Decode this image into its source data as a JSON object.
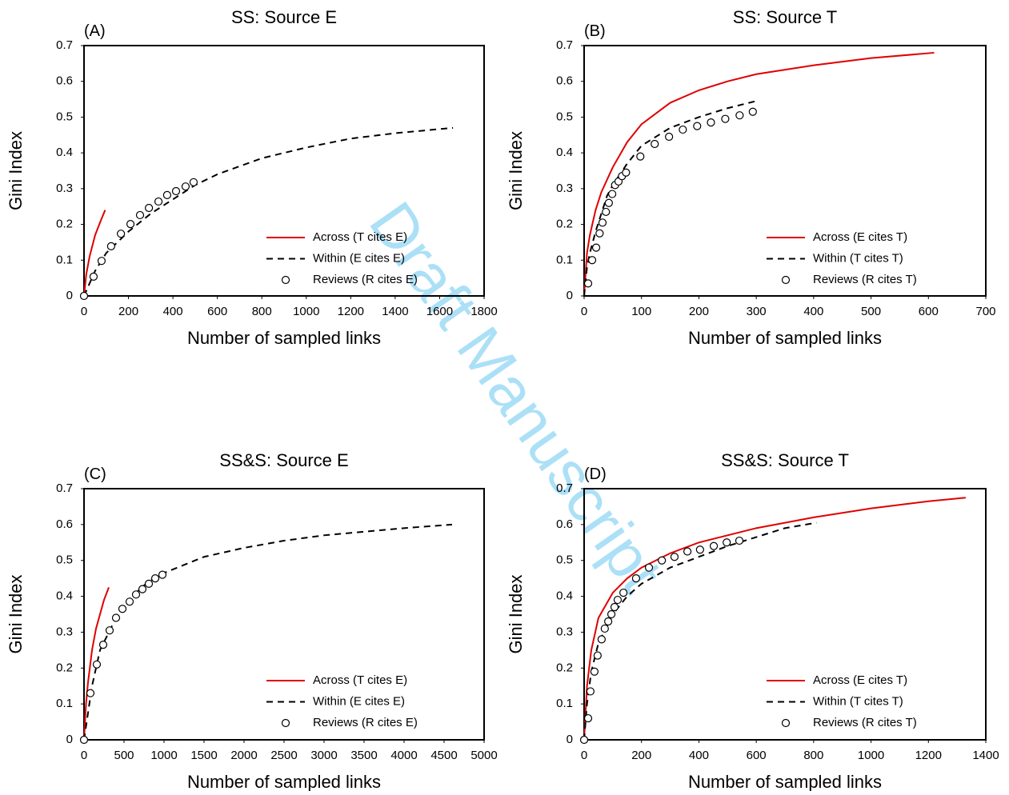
{
  "watermark": "Draft Manuscript",
  "chart_data": [
    {
      "type": "line",
      "panel": "(A)",
      "title": "SS: Source E",
      "xlabel": "Number of sampled links",
      "ylabel": "Gini Index",
      "xlim": [
        0,
        1800
      ],
      "xticks": [
        0,
        200,
        400,
        600,
        800,
        1000,
        1200,
        1400,
        1600,
        1800
      ],
      "ylim": [
        0,
        0.7
      ],
      "yticks": [
        0,
        0.1,
        0.2,
        0.3,
        0.4,
        0.5,
        0.6,
        0.7
      ],
      "series": [
        {
          "name": "Across (T cites E)",
          "color": "#e00000",
          "style": "solid",
          "x": [
            0,
            10,
            25,
            50,
            75,
            95
          ],
          "values": [
            0,
            0.06,
            0.11,
            0.17,
            0.21,
            0.24
          ]
        },
        {
          "name": "Within (E cites E)",
          "color": "#000000",
          "style": "dashed",
          "x": [
            0,
            50,
            100,
            200,
            300,
            400,
            500,
            600,
            800,
            1000,
            1200,
            1400,
            1660
          ],
          "values": [
            0,
            0.07,
            0.12,
            0.18,
            0.23,
            0.27,
            0.31,
            0.34,
            0.385,
            0.415,
            0.44,
            0.455,
            0.47
          ]
        },
        {
          "name": "Reviews (R cites E)",
          "color": "#000000",
          "style": "markers",
          "x": [
            0,
            43,
            79,
            122,
            166,
            209,
            252,
            292,
            335,
            374,
            414,
            457,
            493
          ],
          "values": [
            0,
            0.054,
            0.098,
            0.139,
            0.174,
            0.201,
            0.226,
            0.246,
            0.264,
            0.282,
            0.293,
            0.306,
            0.318
          ]
        }
      ]
    },
    {
      "type": "line",
      "panel": "(B)",
      "title": "SS: Source T",
      "xlabel": "Number of sampled links",
      "ylabel": "Gini Index",
      "xlim": [
        0,
        700
      ],
      "xticks": [
        0,
        100,
        200,
        300,
        400,
        500,
        600,
        700
      ],
      "ylim": [
        0,
        0.7
      ],
      "yticks": [
        0,
        0.1,
        0.2,
        0.3,
        0.4,
        0.5,
        0.6,
        0.7
      ],
      "series": [
        {
          "name": "Across (E cites T)",
          "color": "#e00000",
          "style": "solid",
          "x": [
            0,
            5,
            10,
            20,
            30,
            50,
            75,
            100,
            150,
            200,
            250,
            300,
            400,
            500,
            610
          ],
          "values": [
            0,
            0.12,
            0.17,
            0.24,
            0.29,
            0.36,
            0.43,
            0.48,
            0.54,
            0.575,
            0.6,
            0.62,
            0.645,
            0.665,
            0.68
          ]
        },
        {
          "name": "Within (T cites T)",
          "color": "#000000",
          "style": "dashed",
          "x": [
            0,
            5,
            10,
            20,
            30,
            40,
            50,
            75,
            100,
            150,
            200,
            250,
            300
          ],
          "values": [
            0,
            0.08,
            0.12,
            0.18,
            0.23,
            0.28,
            0.31,
            0.37,
            0.42,
            0.47,
            0.5,
            0.525,
            0.545
          ]
        },
        {
          "name": "Reviews (R cites T)",
          "color": "#000000",
          "style": "markers",
          "x": [
            7,
            14,
            21,
            27,
            32,
            38,
            43,
            49,
            54,
            60,
            66,
            73,
            98,
            123,
            148,
            172,
            197,
            221,
            246,
            271,
            294
          ],
          "values": [
            0.035,
            0.1,
            0.135,
            0.175,
            0.205,
            0.235,
            0.26,
            0.285,
            0.31,
            0.32,
            0.335,
            0.345,
            0.39,
            0.425,
            0.445,
            0.465,
            0.475,
            0.485,
            0.495,
            0.505,
            0.515
          ]
        }
      ]
    },
    {
      "type": "line",
      "panel": "(C)",
      "title": "SS&S: Source E",
      "xlabel": "Number of sampled links",
      "ylabel": "Gini Index",
      "xlim": [
        0,
        5000
      ],
      "xticks": [
        0,
        500,
        1000,
        1500,
        2000,
        2500,
        3000,
        3500,
        4000,
        4500,
        5000
      ],
      "ylim": [
        0,
        0.7
      ],
      "yticks": [
        0,
        0.1,
        0.2,
        0.3,
        0.4,
        0.5,
        0.6,
        0.7
      ],
      "series": [
        {
          "name": "Across (T cites E)",
          "color": "#e00000",
          "style": "solid",
          "x": [
            0,
            25,
            50,
            100,
            150,
            200,
            250,
            310
          ],
          "values": [
            0,
            0.1,
            0.16,
            0.25,
            0.31,
            0.35,
            0.39,
            0.425
          ]
        },
        {
          "name": "Within (E cites E)",
          "color": "#000000",
          "style": "dashed",
          "x": [
            0,
            100,
            200,
            400,
            600,
            800,
            1000,
            1500,
            2000,
            2500,
            3000,
            3500,
            4000,
            4600
          ],
          "values": [
            0,
            0.15,
            0.25,
            0.34,
            0.4,
            0.44,
            0.465,
            0.51,
            0.535,
            0.555,
            0.57,
            0.58,
            0.59,
            0.6
          ]
        },
        {
          "name": "Reviews (R cites E)",
          "color": "#000000",
          "style": "markers",
          "x": [
            0,
            80,
            160,
            240,
            320,
            400,
            480,
            570,
            650,
            730,
            810,
            890,
            980
          ],
          "values": [
            0,
            0.13,
            0.21,
            0.265,
            0.305,
            0.34,
            0.365,
            0.385,
            0.405,
            0.42,
            0.435,
            0.45,
            0.46
          ]
        }
      ]
    },
    {
      "type": "line",
      "panel": "(D)",
      "title": "SS&S: Source T",
      "xlabel": "Number of sampled links",
      "ylabel": "Gini Index",
      "xlim": [
        0,
        1400
      ],
      "xticks": [
        0,
        200,
        400,
        600,
        800,
        1000,
        1200,
        1400
      ],
      "ylim": [
        0,
        0.7
      ],
      "yticks": [
        0,
        0.1,
        0.2,
        0.3,
        0.4,
        0.5,
        0.6,
        0.7
      ],
      "series": [
        {
          "name": "Across (E cites T)",
          "color": "#e00000",
          "style": "solid",
          "x": [
            0,
            10,
            25,
            50,
            100,
            150,
            200,
            300,
            400,
            500,
            600,
            800,
            1000,
            1200,
            1330
          ],
          "values": [
            0,
            0.15,
            0.25,
            0.34,
            0.41,
            0.45,
            0.48,
            0.52,
            0.55,
            0.57,
            0.59,
            0.62,
            0.645,
            0.665,
            0.675
          ]
        },
        {
          "name": "Within (T cites T)",
          "color": "#000000",
          "style": "dashed",
          "x": [
            0,
            10,
            25,
            50,
            100,
            150,
            200,
            300,
            400,
            500,
            600,
            700,
            810
          ],
          "values": [
            0,
            0.1,
            0.19,
            0.27,
            0.35,
            0.4,
            0.435,
            0.48,
            0.51,
            0.54,
            0.565,
            0.59,
            0.605
          ]
        },
        {
          "name": "Reviews (R cites T)",
          "color": "#000000",
          "style": "markers",
          "x": [
            0,
            14,
            22,
            36,
            47,
            61,
            72,
            84,
            95,
            106,
            117,
            137,
            181,
            226,
            271,
            315,
            360,
            404,
            452,
            497,
            541
          ],
          "values": [
            0,
            0.06,
            0.135,
            0.19,
            0.235,
            0.28,
            0.31,
            0.33,
            0.35,
            0.37,
            0.39,
            0.41,
            0.45,
            0.48,
            0.5,
            0.51,
            0.525,
            0.53,
            0.54,
            0.55,
            0.555
          ]
        }
      ]
    }
  ]
}
